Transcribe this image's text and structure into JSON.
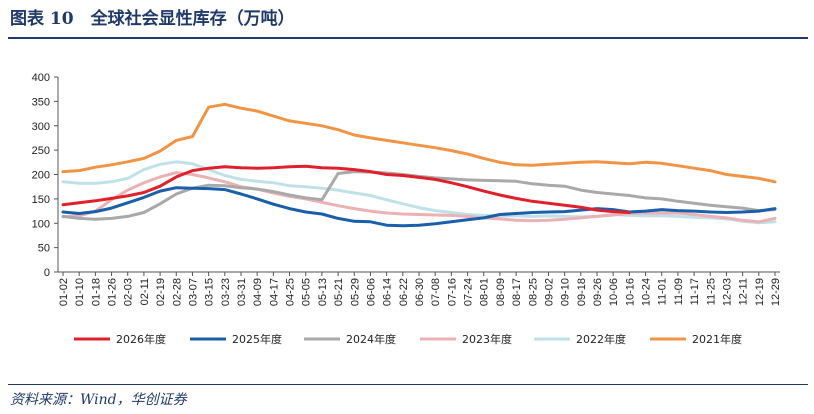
{
  "header": {
    "title": "图表 10　全球社会显性库存（万吨）"
  },
  "footer": {
    "source": "资料来源：Wind，华创证券"
  },
  "chart_data": {
    "type": "line",
    "title": "",
    "xlabel": "",
    "ylabel": "",
    "ylim": [
      0,
      400
    ],
    "yticks": [
      0,
      50,
      100,
      150,
      200,
      250,
      300,
      350,
      400
    ],
    "x_tick_labels": [
      "01-02",
      "01-10",
      "01-18",
      "01-26",
      "02-03",
      "02-11",
      "02-19",
      "02-28",
      "03-07",
      "03-15",
      "03-23",
      "03-31",
      "04-09",
      "04-17",
      "04-25",
      "05-05",
      "05-13",
      "05-21",
      "05-29",
      "06-06",
      "06-14",
      "06-22",
      "06-30",
      "07-08",
      "07-16",
      "07-24",
      "08-01",
      "08-09",
      "08-17",
      "08-25",
      "09-02",
      "09-10",
      "09-18",
      "09-26",
      "10-06",
      "10-16",
      "10-24",
      "11-01",
      "11-09",
      "11-17",
      "11-25",
      "12-03",
      "12-11",
      "12-19",
      "12-29"
    ],
    "grid": false,
    "legend_position": "bottom",
    "series": [
      {
        "name": "2026年度",
        "color": "#e0202a",
        "values": [
          138,
          142,
          146,
          151,
          156,
          163,
          176,
          195,
          208,
          213,
          216,
          214,
          213,
          214,
          216,
          217,
          214,
          213,
          210,
          206,
          200,
          198,
          194,
          190,
          183,
          175,
          166,
          158,
          151,
          145,
          141,
          137,
          133,
          127,
          124,
          122,
          null,
          null,
          null,
          null,
          null,
          null,
          null,
          null,
          null
        ]
      },
      {
        "name": "2025年度",
        "color": "#1a5fac",
        "values": [
          123,
          120,
          124,
          131,
          142,
          153,
          166,
          173,
          172,
          171,
          169,
          160,
          150,
          139,
          130,
          123,
          119,
          110,
          104,
          103,
          96,
          95,
          96,
          99,
          103,
          107,
          111,
          118,
          120,
          122,
          123,
          124,
          127,
          130,
          128,
          123,
          125,
          128,
          126,
          125,
          123,
          122,
          123,
          125,
          130
        ]
      },
      {
        "name": "2024年度",
        "color": "#a9a9a9",
        "values": [
          114,
          110,
          108,
          110,
          114,
          122,
          140,
          160,
          172,
          178,
          177,
          173,
          170,
          165,
          158,
          152,
          148,
          202,
          206,
          205,
          203,
          200,
          196,
          193,
          191,
          189,
          188,
          187,
          186,
          181,
          178,
          176,
          168,
          163,
          160,
          157,
          152,
          150,
          145,
          141,
          137,
          134,
          131,
          126,
          128
        ]
      },
      {
        "name": "2023年度",
        "color": "#ecb1b5",
        "values": [
          113,
          115,
          125,
          148,
          168,
          183,
          195,
          204,
          200,
          193,
          185,
          175,
          170,
          162,
          155,
          150,
          143,
          136,
          130,
          125,
          121,
          119,
          118,
          117,
          116,
          114,
          111,
          109,
          106,
          105,
          106,
          108,
          111,
          114,
          117,
          120,
          121,
          121,
          121,
          118,
          114,
          111,
          106,
          103,
          110
        ]
      },
      {
        "name": "2022年度",
        "color": "#bfe1e7",
        "values": [
          185,
          182,
          182,
          185,
          192,
          210,
          221,
          226,
          222,
          210,
          198,
          190,
          186,
          183,
          177,
          175,
          172,
          168,
          162,
          157,
          148,
          140,
          132,
          126,
          122,
          118,
          116,
          115,
          115,
          114,
          115,
          114,
          113,
          114,
          118,
          116,
          115,
          115,
          114,
          112,
          111,
          109,
          104,
          101,
          103
        ]
      },
      {
        "name": "2021年度",
        "color": "#f19445",
        "values": [
          206,
          208,
          215,
          220,
          226,
          233,
          248,
          270,
          278,
          338,
          344,
          336,
          330,
          320,
          310,
          305,
          300,
          292,
          281,
          275,
          270,
          265,
          260,
          255,
          249,
          242,
          233,
          225,
          220,
          219,
          221,
          223,
          225,
          226,
          224,
          222,
          225,
          223,
          218,
          213,
          208,
          200,
          196,
          192,
          185
        ]
      }
    ]
  }
}
